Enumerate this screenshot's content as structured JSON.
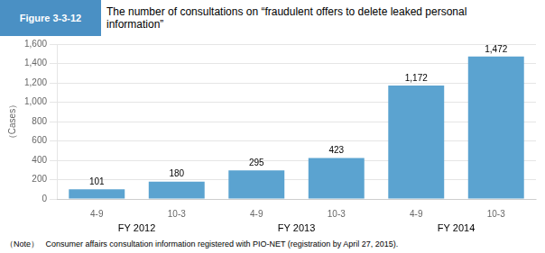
{
  "chart_data": {
    "type": "bar",
    "figure_label": "Figure 3-3-12",
    "title": "The number of consultations on “fraudulent offers to delete leaked personal\ninformation”",
    "ylabel": "（Cases）",
    "note": "（Note）   Consumer affairs consultation information registered with PIO-NET (registration by April 27, 2015).",
    "categories": [
      "4-9",
      "10-3",
      "4-9",
      "10-3",
      "4-9",
      "10-3"
    ],
    "group_labels": [
      "FY 2012",
      "FY 2013",
      "FY 2014"
    ],
    "values": [
      101,
      180,
      295,
      423,
      1172,
      1472
    ],
    "value_labels": [
      "101",
      "180",
      "295",
      "423",
      "1,172",
      "1,472"
    ],
    "data_labels": true,
    "color": "#5ba3d0",
    "ylim": [
      0,
      1600
    ],
    "yticks": [
      0,
      200,
      400,
      600,
      800,
      {
        "value": 1000,
        "label": "1,000"
      },
      {
        "value": 1200,
        "label": "1,200"
      },
      {
        "value": 1400,
        "label": "1,400"
      },
      {
        "value": 1600,
        "label": "1,600"
      }
    ],
    "grid": true
  }
}
